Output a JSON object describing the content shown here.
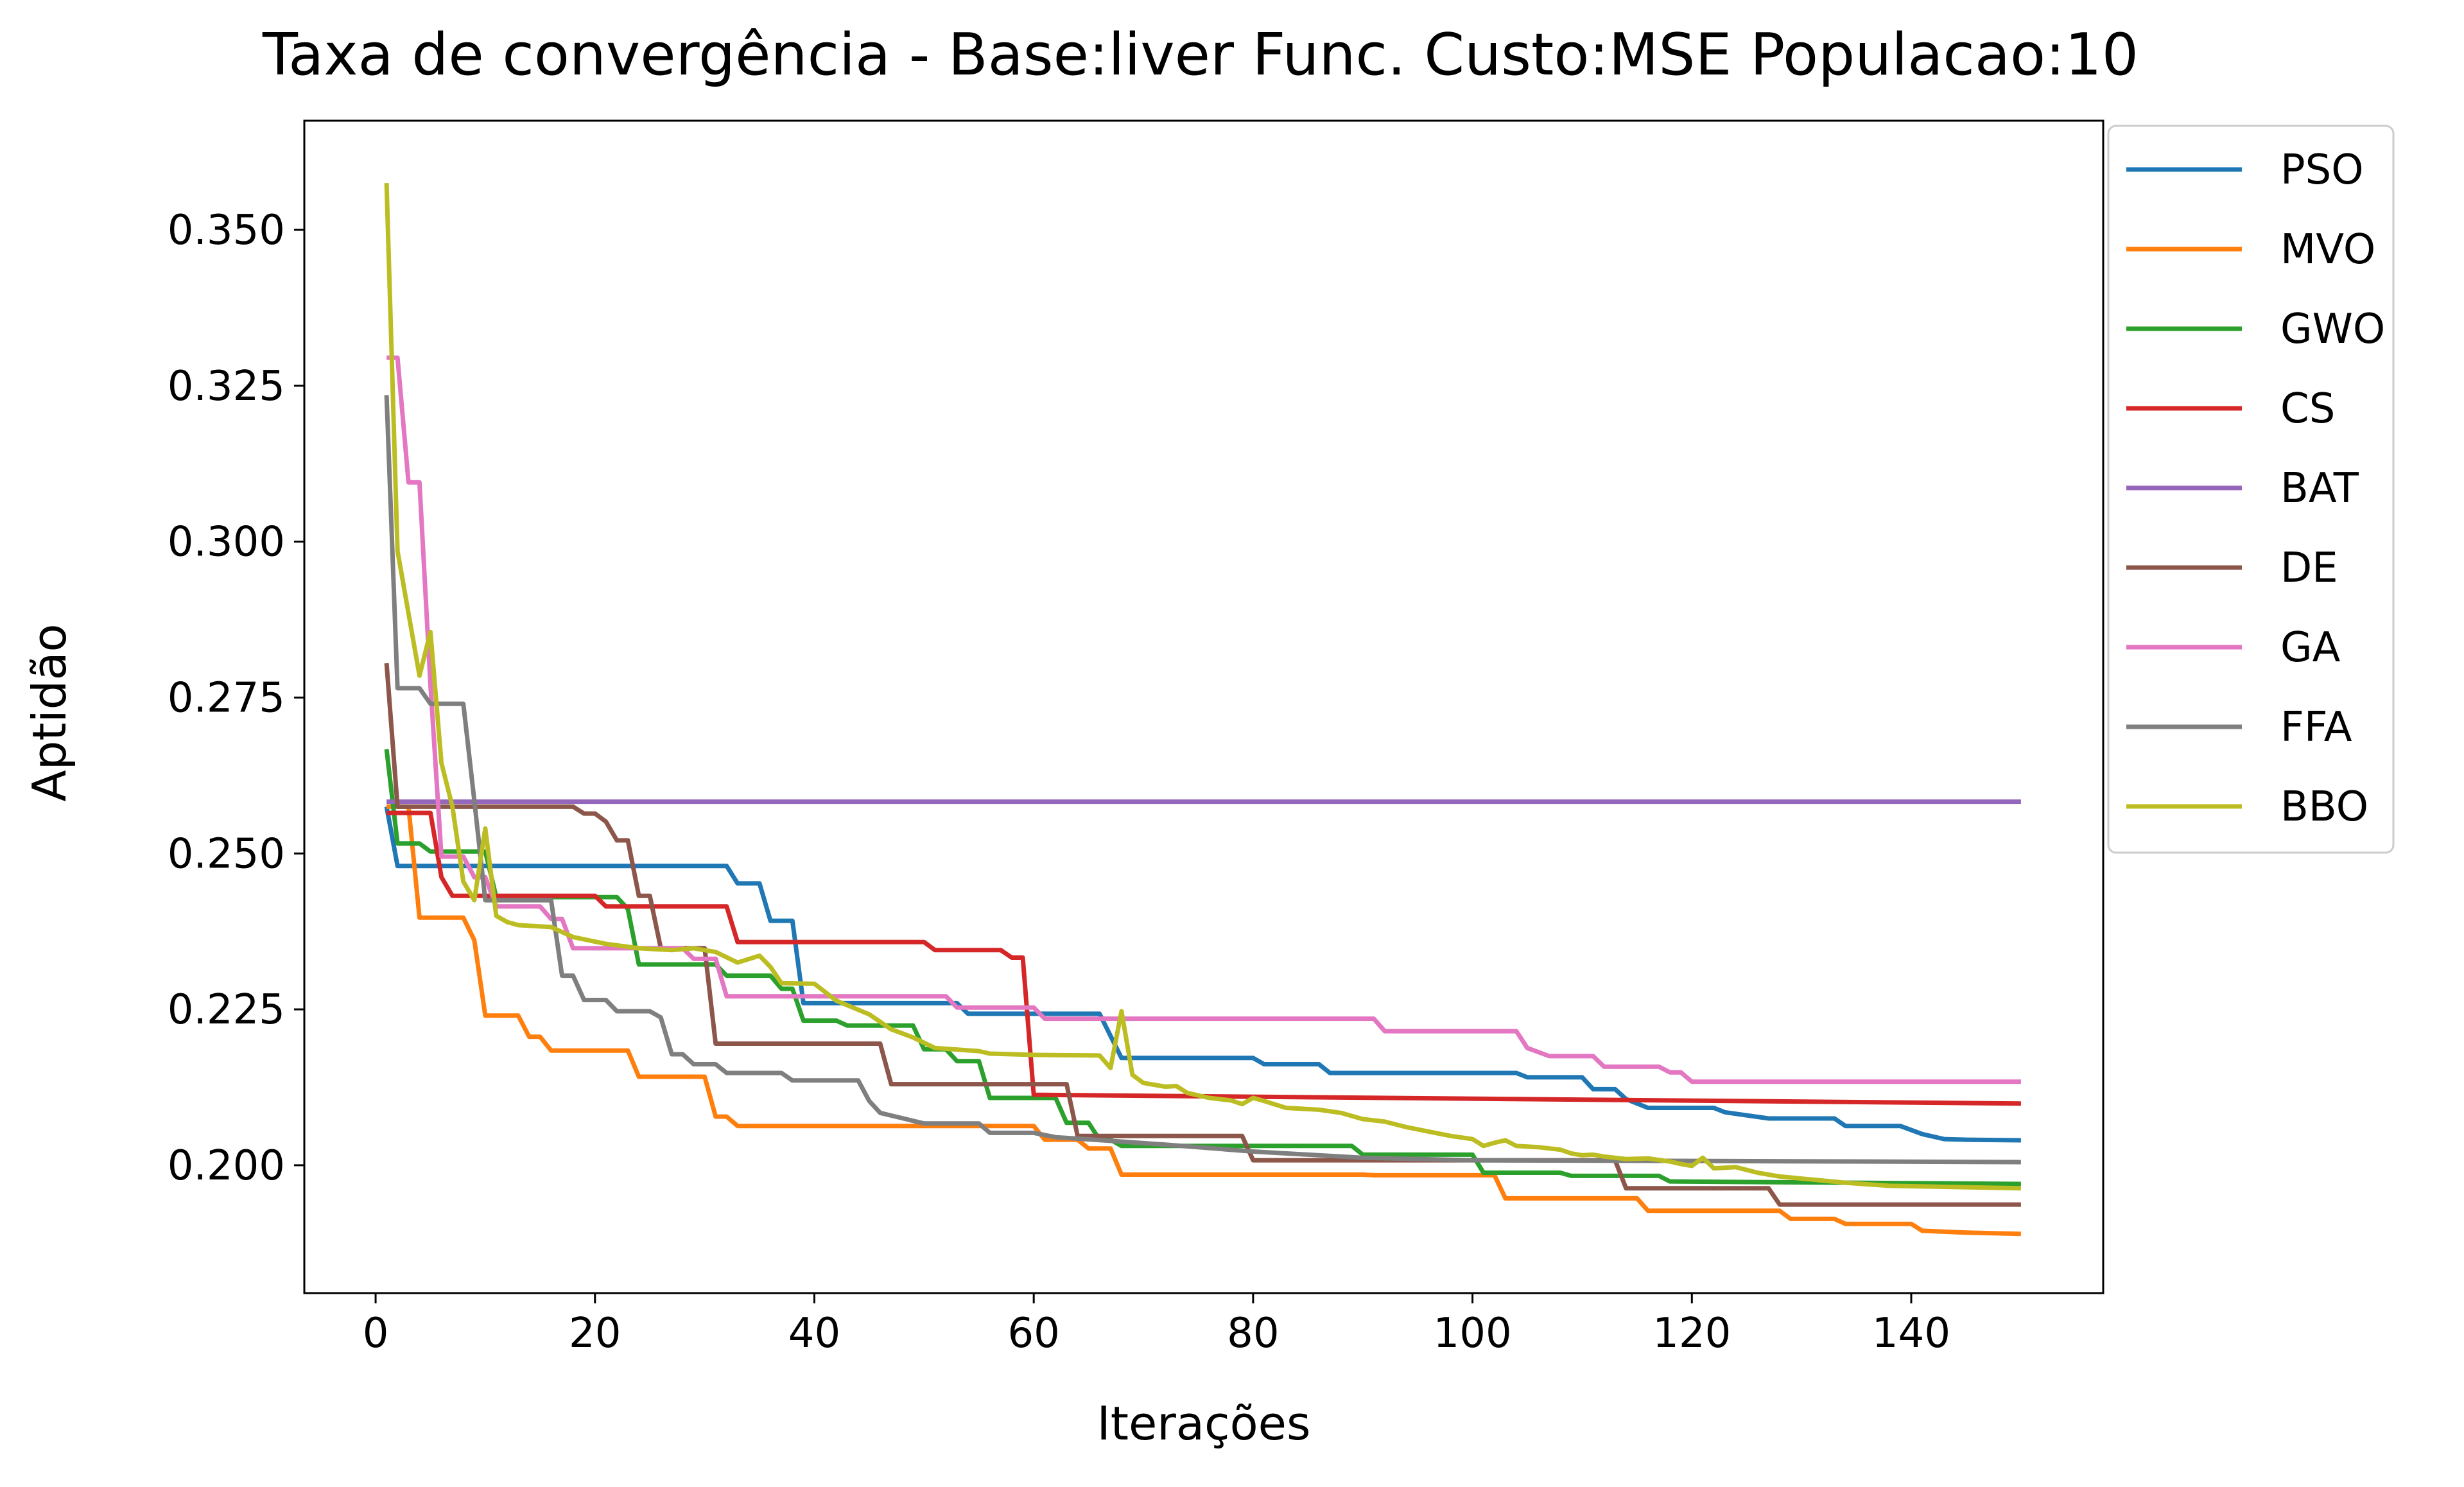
{
  "chart_data": {
    "type": "line",
    "title": "Taxa de convergência - Base:liver Func. Custo:MSE Populacao:10",
    "xlabel": "Iterações",
    "ylabel": "Aptidão",
    "xlim": [
      -6.5,
      157.5
    ],
    "ylim": [
      0.1795,
      0.3675
    ],
    "xticks": [
      0,
      20,
      40,
      60,
      80,
      100,
      120,
      140
    ],
    "yticks": [
      0.2,
      0.225,
      0.25,
      0.275,
      0.3,
      0.325,
      0.35
    ],
    "xtick_labels": [
      "0",
      "20",
      "40",
      "60",
      "80",
      "100",
      "120",
      "140"
    ],
    "ytick_labels": [
      "0.200",
      "0.225",
      "0.250",
      "0.275",
      "0.300",
      "0.325",
      "0.350"
    ],
    "grid": false,
    "legend_position": "outside-right-top",
    "series": [
      {
        "name": "PSO",
        "color": "#1f77b4",
        "points": [
          [
            1,
            0.2575
          ],
          [
            2,
            0.248
          ],
          [
            32,
            0.248
          ],
          [
            33,
            0.2452
          ],
          [
            35,
            0.2452
          ],
          [
            36,
            0.2392
          ],
          [
            38,
            0.2392
          ],
          [
            39,
            0.226
          ],
          [
            53,
            0.226
          ],
          [
            54,
            0.2243
          ],
          [
            66,
            0.2243
          ],
          [
            68,
            0.2172
          ],
          [
            80,
            0.2172
          ],
          [
            81,
            0.2162
          ],
          [
            86,
            0.2162
          ],
          [
            87,
            0.2148
          ],
          [
            104,
            0.2148
          ],
          [
            105,
            0.2141
          ],
          [
            110,
            0.2141
          ],
          [
            111,
            0.2122
          ],
          [
            113,
            0.2122
          ],
          [
            114,
            0.2106
          ],
          [
            116,
            0.2092
          ],
          [
            122,
            0.2092
          ],
          [
            123,
            0.2085
          ],
          [
            127,
            0.2075
          ],
          [
            133,
            0.2075
          ],
          [
            134,
            0.2063
          ],
          [
            139,
            0.2063
          ],
          [
            141,
            0.205
          ],
          [
            143,
            0.2042
          ],
          [
            145,
            0.2041
          ],
          [
            150,
            0.204
          ]
        ]
      },
      {
        "name": "MVO",
        "color": "#ff7f0e",
        "points": [
          [
            1,
            0.2575
          ],
          [
            3,
            0.2575
          ],
          [
            4,
            0.2397
          ],
          [
            8,
            0.2397
          ],
          [
            9,
            0.2361
          ],
          [
            10,
            0.224
          ],
          [
            13,
            0.224
          ],
          [
            14,
            0.2206
          ],
          [
            15,
            0.2206
          ],
          [
            16,
            0.2184
          ],
          [
            23,
            0.2184
          ],
          [
            24,
            0.2142
          ],
          [
            30,
            0.2142
          ],
          [
            31,
            0.2078
          ],
          [
            32,
            0.2078
          ],
          [
            33,
            0.2063
          ],
          [
            60,
            0.2063
          ],
          [
            61,
            0.2041
          ],
          [
            64,
            0.2041
          ],
          [
            65,
            0.2027
          ],
          [
            67,
            0.2027
          ],
          [
            68,
            0.1985
          ],
          [
            90,
            0.1985
          ],
          [
            91,
            0.1984
          ],
          [
            102,
            0.1984
          ],
          [
            103,
            0.1947
          ],
          [
            115,
            0.1947
          ],
          [
            116,
            0.1927
          ],
          [
            128,
            0.1927
          ],
          [
            129,
            0.1914
          ],
          [
            133,
            0.1914
          ],
          [
            134,
            0.1906
          ],
          [
            140,
            0.1906
          ],
          [
            141,
            0.1895
          ],
          [
            145,
            0.1892
          ],
          [
            150,
            0.189
          ]
        ]
      },
      {
        "name": "GWO",
        "color": "#2ca02c",
        "points": [
          [
            1,
            0.2667
          ],
          [
            2,
            0.2516
          ],
          [
            4,
            0.2516
          ],
          [
            5,
            0.2503
          ],
          [
            10,
            0.2503
          ],
          [
            11,
            0.243
          ],
          [
            22,
            0.243
          ],
          [
            23,
            0.2411
          ],
          [
            24,
            0.2322
          ],
          [
            31,
            0.2322
          ],
          [
            32,
            0.2304
          ],
          [
            36,
            0.2304
          ],
          [
            37,
            0.2283
          ],
          [
            38,
            0.2283
          ],
          [
            39,
            0.2232
          ],
          [
            42,
            0.2232
          ],
          [
            43,
            0.2224
          ],
          [
            49,
            0.2224
          ],
          [
            50,
            0.2186
          ],
          [
            52,
            0.2186
          ],
          [
            53,
            0.2167
          ],
          [
            55,
            0.2167
          ],
          [
            56,
            0.2108
          ],
          [
            62,
            0.2108
          ],
          [
            63,
            0.2068
          ],
          [
            65,
            0.2068
          ],
          [
            66,
            0.2041
          ],
          [
            67,
            0.2041
          ],
          [
            68,
            0.2031
          ],
          [
            89,
            0.2031
          ],
          [
            90,
            0.2017
          ],
          [
            100,
            0.2017
          ],
          [
            101,
            0.1988
          ],
          [
            108,
            0.1988
          ],
          [
            109,
            0.1983
          ],
          [
            117,
            0.1983
          ],
          [
            118,
            0.1974
          ],
          [
            150,
            0.197
          ]
        ]
      },
      {
        "name": "CS",
        "color": "#d62728",
        "points": [
          [
            1,
            0.2565
          ],
          [
            5,
            0.2565
          ],
          [
            6,
            0.2462
          ],
          [
            7,
            0.2432
          ],
          [
            20,
            0.2432
          ],
          [
            21,
            0.2415
          ],
          [
            32,
            0.2415
          ],
          [
            33,
            0.2358
          ],
          [
            50,
            0.2358
          ],
          [
            51,
            0.2345
          ],
          [
            57,
            0.2345
          ],
          [
            58,
            0.2333
          ],
          [
            59,
            0.2333
          ],
          [
            60,
            0.2113
          ],
          [
            150,
            0.2099
          ]
        ]
      },
      {
        "name": "BAT",
        "color": "#9467bd",
        "points": [
          [
            1,
            0.2583
          ],
          [
            150,
            0.2583
          ]
        ]
      },
      {
        "name": "DE",
        "color": "#8c564b",
        "points": [
          [
            1,
            0.2805
          ],
          [
            2,
            0.2575
          ],
          [
            18,
            0.2575
          ],
          [
            19,
            0.2564
          ],
          [
            20,
            0.2564
          ],
          [
            21,
            0.2551
          ],
          [
            22,
            0.2521
          ],
          [
            23,
            0.2521
          ],
          [
            24,
            0.2432
          ],
          [
            25,
            0.2432
          ],
          [
            26,
            0.2348
          ],
          [
            30,
            0.2348
          ],
          [
            31,
            0.2195
          ],
          [
            46,
            0.2195
          ],
          [
            47,
            0.213
          ],
          [
            63,
            0.213
          ],
          [
            64,
            0.2047
          ],
          [
            79,
            0.2047
          ],
          [
            80,
            0.2008
          ],
          [
            113,
            0.2008
          ],
          [
            114,
            0.1963
          ],
          [
            127,
            0.1963
          ],
          [
            128,
            0.1937
          ],
          [
            150,
            0.1937
          ]
        ]
      },
      {
        "name": "GA",
        "color": "#e377c2",
        "points": [
          [
            1,
            0.3295
          ],
          [
            2,
            0.3295
          ],
          [
            3,
            0.3095
          ],
          [
            4,
            0.3095
          ],
          [
            5,
            0.277
          ],
          [
            6,
            0.2495
          ],
          [
            8,
            0.2495
          ],
          [
            9,
            0.2462
          ],
          [
            10,
            0.2462
          ],
          [
            11,
            0.2415
          ],
          [
            15,
            0.2415
          ],
          [
            16,
            0.2395
          ],
          [
            17,
            0.2395
          ],
          [
            18,
            0.2348
          ],
          [
            28,
            0.2348
          ],
          [
            29,
            0.2331
          ],
          [
            31,
            0.2331
          ],
          [
            32,
            0.2271
          ],
          [
            52,
            0.2271
          ],
          [
            53,
            0.2253
          ],
          [
            60,
            0.2253
          ],
          [
            61,
            0.2235
          ],
          [
            91,
            0.2235
          ],
          [
            92,
            0.2215
          ],
          [
            104,
            0.2215
          ],
          [
            105,
            0.2188
          ],
          [
            107,
            0.2175
          ],
          [
            111,
            0.2175
          ],
          [
            112,
            0.2158
          ],
          [
            117,
            0.2158
          ],
          [
            118,
            0.2149
          ],
          [
            119,
            0.2149
          ],
          [
            120,
            0.2134
          ],
          [
            150,
            0.2134
          ]
        ]
      },
      {
        "name": "FFA",
        "color": "#7f7f7f",
        "points": [
          [
            1,
            0.3235
          ],
          [
            2,
            0.2765
          ],
          [
            4,
            0.2765
          ],
          [
            5,
            0.274
          ],
          [
            8,
            0.274
          ],
          [
            9,
            0.2585
          ],
          [
            10,
            0.2425
          ],
          [
            16,
            0.2425
          ],
          [
            17,
            0.2304
          ],
          [
            18,
            0.2304
          ],
          [
            19,
            0.2265
          ],
          [
            21,
            0.2265
          ],
          [
            22,
            0.2247
          ],
          [
            25,
            0.2247
          ],
          [
            26,
            0.2237
          ],
          [
            27,
            0.2178
          ],
          [
            28,
            0.2178
          ],
          [
            29,
            0.2162
          ],
          [
            31,
            0.2162
          ],
          [
            32,
            0.2148
          ],
          [
            37,
            0.2148
          ],
          [
            38,
            0.2136
          ],
          [
            44,
            0.2136
          ],
          [
            45,
            0.2103
          ],
          [
            46,
            0.2084
          ],
          [
            50,
            0.2067
          ],
          [
            55,
            0.2067
          ],
          [
            56,
            0.2052
          ],
          [
            60,
            0.2052
          ],
          [
            62,
            0.2045
          ],
          [
            68,
            0.2038
          ],
          [
            72,
            0.2033
          ],
          [
            80,
            0.2022
          ],
          [
            90,
            0.2012
          ],
          [
            100,
            0.2008
          ],
          [
            120,
            0.2007
          ],
          [
            150,
            0.2005
          ]
        ]
      },
      {
        "name": "BBO",
        "color": "#bcbd22",
        "points": [
          [
            1,
            0.3575
          ],
          [
            2,
            0.2985
          ],
          [
            3,
            0.2885
          ],
          [
            4,
            0.2785
          ],
          [
            5,
            0.2855
          ],
          [
            6,
            0.2645
          ],
          [
            7,
            0.2575
          ],
          [
            8,
            0.2455
          ],
          [
            9,
            0.2425
          ],
          [
            10,
            0.254
          ],
          [
            11,
            0.24
          ],
          [
            12,
            0.239
          ],
          [
            13,
            0.2385
          ],
          [
            16,
            0.2382
          ],
          [
            18,
            0.2366
          ],
          [
            21,
            0.2355
          ],
          [
            24,
            0.2348
          ],
          [
            27,
            0.2345
          ],
          [
            29,
            0.2348
          ],
          [
            31,
            0.2342
          ],
          [
            33,
            0.2325
          ],
          [
            35,
            0.2336
          ],
          [
            36,
            0.2318
          ],
          [
            37,
            0.2292
          ],
          [
            40,
            0.2291
          ],
          [
            42,
            0.2264
          ],
          [
            45,
            0.2242
          ],
          [
            47,
            0.2218
          ],
          [
            49,
            0.2205
          ],
          [
            51,
            0.2188
          ],
          [
            55,
            0.2183
          ],
          [
            56,
            0.2179
          ],
          [
            60,
            0.2177
          ],
          [
            66,
            0.2176
          ],
          [
            67,
            0.2156
          ],
          [
            68,
            0.2247
          ],
          [
            69,
            0.2145
          ],
          [
            70,
            0.2132
          ],
          [
            72,
            0.2126
          ],
          [
            73,
            0.2127
          ],
          [
            74,
            0.2116
          ],
          [
            76,
            0.2108
          ],
          [
            78,
            0.2104
          ],
          [
            79,
            0.2098
          ],
          [
            80,
            0.2108
          ],
          [
            81,
            0.2103
          ],
          [
            83,
            0.2092
          ],
          [
            86,
            0.2089
          ],
          [
            88,
            0.2084
          ],
          [
            90,
            0.2074
          ],
          [
            92,
            0.207
          ],
          [
            94,
            0.2061
          ],
          [
            96,
            0.2054
          ],
          [
            98,
            0.2047
          ],
          [
            100,
            0.2042
          ],
          [
            101,
            0.2031
          ],
          [
            102,
            0.2036
          ],
          [
            103,
            0.204
          ],
          [
            104,
            0.2031
          ],
          [
            106,
            0.2029
          ],
          [
            108,
            0.2025
          ],
          [
            109,
            0.2019
          ],
          [
            110,
            0.2016
          ],
          [
            111,
            0.2017
          ],
          [
            112,
            0.2014
          ],
          [
            114,
            0.201
          ],
          [
            116,
            0.2011
          ],
          [
            118,
            0.2006
          ],
          [
            119,
            0.2002
          ],
          [
            120,
            0.1999
          ],
          [
            121,
            0.2012
          ],
          [
            122,
            0.1995
          ],
          [
            124,
            0.1997
          ],
          [
            126,
            0.1988
          ],
          [
            128,
            0.1982
          ],
          [
            131,
            0.1977
          ],
          [
            134,
            0.1972
          ],
          [
            138,
            0.1967
          ],
          [
            150,
            0.1963
          ]
        ]
      }
    ]
  }
}
